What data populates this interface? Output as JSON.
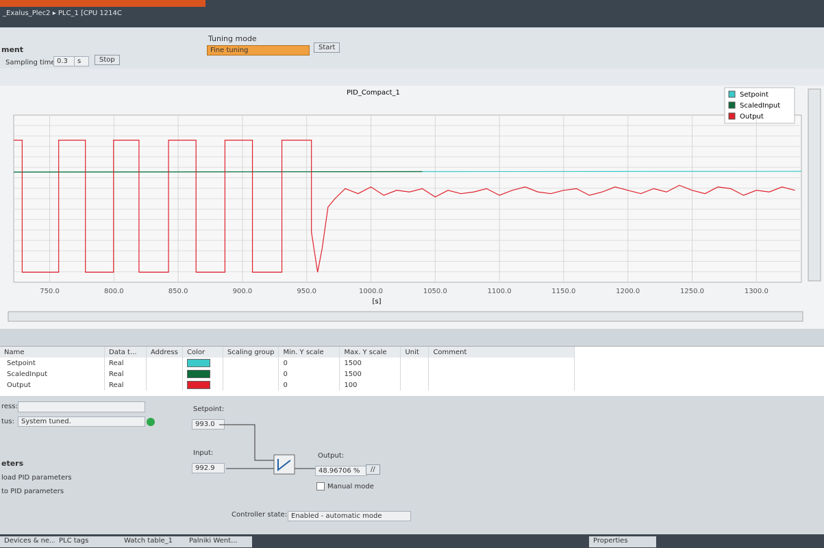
{
  "window": {
    "breadcrumb": "_Exalus_Plec2 ▸ PLC_1 [CPU 1214C"
  },
  "toolbar": {
    "section": "ment",
    "sampling_label": "Sampling time:",
    "sampling_value": "0.3",
    "sampling_unit": "s",
    "stop": "Stop",
    "tuning_label": "Tuning mode",
    "tuning_value": "Fine tuning",
    "start": "Start"
  },
  "chart_data": {
    "type": "line",
    "title": "PID_Compact_1",
    "x_label": "[s]",
    "xlim": [
      722,
      1335
    ],
    "xticks": [
      {
        "value": 750,
        "label": "750.0"
      },
      {
        "value": 800,
        "label": "800.0"
      },
      {
        "value": 850,
        "label": "850.0"
      },
      {
        "value": 900,
        "label": "900.0"
      },
      {
        "value": 950,
        "label": "950.0"
      },
      {
        "value": 1000,
        "label": "1000.0"
      },
      {
        "value": 1050,
        "label": "1050.0"
      },
      {
        "value": 1100,
        "label": "1100.0"
      },
      {
        "value": 1150,
        "label": "1150.0"
      },
      {
        "value": 1200,
        "label": "1200.0"
      },
      {
        "value": 1250,
        "label": "1250.0"
      },
      {
        "value": 1300,
        "label": "1300.0"
      }
    ],
    "grid": true,
    "legend": "top-right",
    "series": [
      {
        "name": "Setpoint",
        "color": "#3cc9c9",
        "x": [
          722,
          1335
        ],
        "values": [
          990,
          995
        ]
      },
      {
        "name": "ScaledInput",
        "color": "#0f6b3a",
        "x": [
          722,
          1040
        ],
        "values": [
          988,
          993
        ]
      },
      {
        "name": "Output",
        "color": "#e0202a",
        "x": [
          722,
          728.6,
          728.6,
          757,
          757,
          777.8,
          777.8,
          799.7,
          799.7,
          819.5,
          819.5,
          842.5,
          842.5,
          863.9,
          863.9,
          886.4,
          886.4,
          907.8,
          907.8,
          930.7,
          930.7,
          953.7,
          953.7,
          958.5,
          962,
          966.6,
          972,
          980,
          990,
          1000,
          1010,
          1020,
          1030,
          1040,
          1050,
          1060,
          1070,
          1080,
          1090,
          1100,
          1110,
          1120,
          1130,
          1140,
          1150,
          1160,
          1170,
          1180,
          1190,
          1200,
          1210,
          1220,
          1230,
          1240,
          1250,
          1260,
          1270,
          1280,
          1290,
          1300,
          1310,
          1320,
          1330
        ],
        "values": [
          85,
          85,
          6,
          6,
          85,
          85,
          6,
          6,
          85,
          85,
          6,
          6,
          85,
          85,
          6,
          6,
          85,
          85,
          6,
          6,
          85,
          85,
          30,
          6,
          20,
          45,
          50,
          56,
          53,
          57,
          52,
          55,
          54,
          56,
          51,
          55,
          53,
          54,
          56,
          52,
          55,
          57,
          54,
          53,
          55,
          56,
          52,
          54,
          57,
          55,
          53,
          56,
          54,
          58,
          55,
          53,
          57,
          56,
          52,
          55,
          54,
          57,
          55
        ]
      }
    ]
  },
  "signal_table": {
    "columns": [
      "Name",
      "Data t...",
      "Address",
      "Color",
      "Scaling group",
      "Min. Y scale",
      "Max. Y scale",
      "Unit",
      "Comment"
    ],
    "rows": [
      {
        "name": "Setpoint",
        "data_type": "Real",
        "min": 0,
        "max": 1500
      },
      {
        "name": "ScaledInput",
        "data_type": "Real",
        "min": 0,
        "max": 1500
      },
      {
        "name": "Output",
        "data_type": "Real",
        "min": 0,
        "max": 100
      }
    ]
  },
  "status": {
    "progress_label": "ress:",
    "status_label": "tus:",
    "status_value": "System tuned.",
    "section": "eters",
    "upload": "load PID parameters",
    "download": "to PID parameters"
  },
  "controller": {
    "setpoint_label": "Setpoint:",
    "setpoint": "993.0",
    "input_label": "Input:",
    "input": "992.9",
    "output_label": "Output:",
    "output": "48.96706",
    "output_unit": "%",
    "manual": "Manual mode",
    "state_label": "Controller state:",
    "state": "Enabled - automatic mode"
  },
  "taskbar": {
    "tabs": [
      "Devices & ne...",
      "PLC tags",
      "Watch table_1",
      "Palniki Went...",
      "Properties"
    ]
  }
}
